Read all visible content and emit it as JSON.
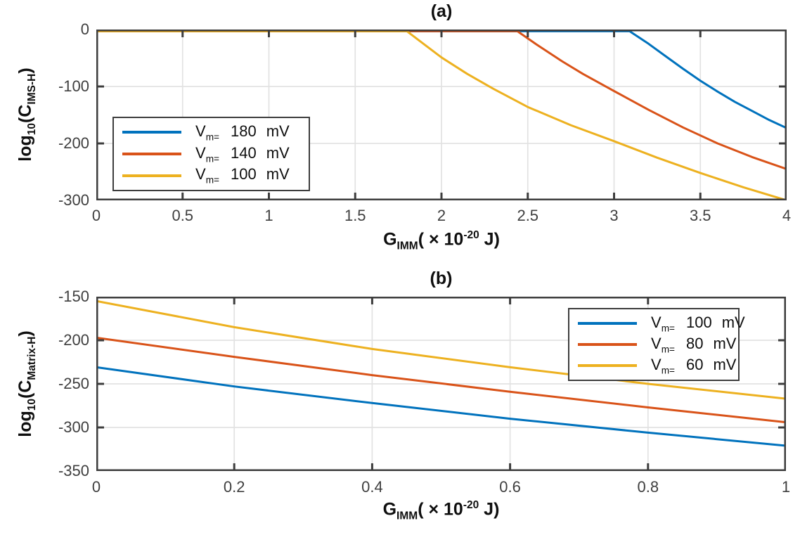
{
  "figure": {
    "background": "#ffffff",
    "colors": {
      "axis": "#3d3d3d",
      "grid": "#e2e2e2",
      "tick_text": "#3f3f3f",
      "label_text": "#0f0f0f",
      "series_blue": "#0072BD",
      "series_orange": "#D95319",
      "series_yellow": "#EDB120"
    }
  },
  "chart_data": [
    {
      "id": "a",
      "type": "line",
      "title": "(a)",
      "xlabel": "G_IMM( × 10^-20 J)",
      "ylabel": "log10(C_IMS-H)",
      "xlabel_parts": {
        "g": "G",
        "g_sub": "IMM",
        "open": "( × 10",
        "sup": "-20",
        "close": " J)"
      },
      "ylabel_parts": {
        "log": "log",
        "log_sub": "10",
        "open": "(C",
        "c_sub": "IMS-H",
        "close": ")"
      },
      "xlim": [
        0,
        4
      ],
      "ylim": [
        -300,
        0
      ],
      "xticks": [
        0,
        0.5,
        1,
        1.5,
        2,
        2.5,
        3,
        3.5,
        4
      ],
      "yticks": [
        0,
        -100,
        -200,
        -300
      ],
      "grid": true,
      "legend_position": "left-middle",
      "series": [
        {
          "name": "V_m= 180 mV",
          "label": {
            "v": "V",
            "sub": "m=",
            "num": "180",
            "unit": "mV"
          },
          "color": "#0072BD",
          "points": [
            [
              0,
              -3
            ],
            [
              3.09,
              -3
            ],
            [
              3.2,
              -25
            ],
            [
              3.3,
              -47
            ],
            [
              3.4,
              -69
            ],
            [
              3.5,
              -90
            ],
            [
              3.6,
              -109
            ],
            [
              3.7,
              -127
            ],
            [
              3.8,
              -143
            ],
            [
              3.9,
              -159
            ],
            [
              4,
              -173
            ]
          ]
        },
        {
          "name": "V_m= 140 mV",
          "label": {
            "v": "V",
            "sub": "m=",
            "num": "140",
            "unit": "mV"
          },
          "color": "#D95319",
          "points": [
            [
              0,
              -3
            ],
            [
              2.44,
              -3
            ],
            [
              2.55,
              -26
            ],
            [
              2.7,
              -56
            ],
            [
              2.82,
              -78
            ],
            [
              3.0,
              -108
            ],
            [
              3.2,
              -141
            ],
            [
              3.4,
              -172
            ],
            [
              3.6,
              -200
            ],
            [
              3.8,
              -224
            ],
            [
              4,
              -245
            ]
          ]
        },
        {
          "name": "V_m= 100 mV",
          "label": {
            "v": "V",
            "sub": "m=",
            "num": "100",
            "unit": "mV"
          },
          "color": "#EDB120",
          "points": [
            [
              0,
              -3
            ],
            [
              1.8,
              -3
            ],
            [
              1.9,
              -26
            ],
            [
              2.0,
              -49
            ],
            [
              2.15,
              -78
            ],
            [
              2.3,
              -104
            ],
            [
              2.5,
              -136
            ],
            [
              2.75,
              -168
            ],
            [
              3.0,
              -196
            ],
            [
              3.25,
              -225
            ],
            [
              3.5,
              -252
            ],
            [
              3.75,
              -277
            ],
            [
              4,
              -300
            ]
          ]
        }
      ]
    },
    {
      "id": "b",
      "type": "line",
      "title": "(b)",
      "xlabel": "G_IMM( × 10^-20 J)",
      "ylabel": "log10(C_Matrix-H)",
      "xlabel_parts": {
        "g": "G",
        "g_sub": "IMM",
        "open": "( × 10",
        "sup": "-20",
        "close": " J)"
      },
      "ylabel_parts": {
        "log": "log",
        "log_sub": "10",
        "open": "(C",
        "c_sub": "Matrix-H",
        "close": ")"
      },
      "xlim": [
        0,
        1
      ],
      "ylim": [
        -350,
        -150
      ],
      "xticks": [
        0,
        0.2,
        0.4,
        0.6,
        0.8,
        1
      ],
      "yticks": [
        -150,
        -200,
        -250,
        -300,
        -350
      ],
      "grid": true,
      "legend_position": "top-right",
      "series": [
        {
          "name": "V_m= 100 mV",
          "label": {
            "v": "V",
            "sub": "m=",
            "num": "100",
            "unit": "mV"
          },
          "color": "#0072BD",
          "points": [
            [
              0,
              -231
            ],
            [
              0.2,
              -253
            ],
            [
              0.4,
              -272
            ],
            [
              0.6,
              -290
            ],
            [
              0.8,
              -306
            ],
            [
              1,
              -321
            ]
          ]
        },
        {
          "name": "V_m= 80 mV",
          "label": {
            "v": "V",
            "sub": "m=",
            "num": "80",
            "unit": "mV"
          },
          "color": "#D95319",
          "points": [
            [
              0,
              -197
            ],
            [
              0.2,
              -219
            ],
            [
              0.4,
              -240
            ],
            [
              0.6,
              -259
            ],
            [
              0.8,
              -277
            ],
            [
              1,
              -294
            ]
          ]
        },
        {
          "name": "V_m= 60 mV",
          "label": {
            "v": "V",
            "sub": "m=",
            "num": "60",
            "unit": "mV"
          },
          "color": "#EDB120",
          "points": [
            [
              0,
              -155
            ],
            [
              0.2,
              -185
            ],
            [
              0.4,
              -210
            ],
            [
              0.6,
              -231
            ],
            [
              0.8,
              -250
            ],
            [
              1,
              -267
            ]
          ]
        }
      ]
    }
  ]
}
